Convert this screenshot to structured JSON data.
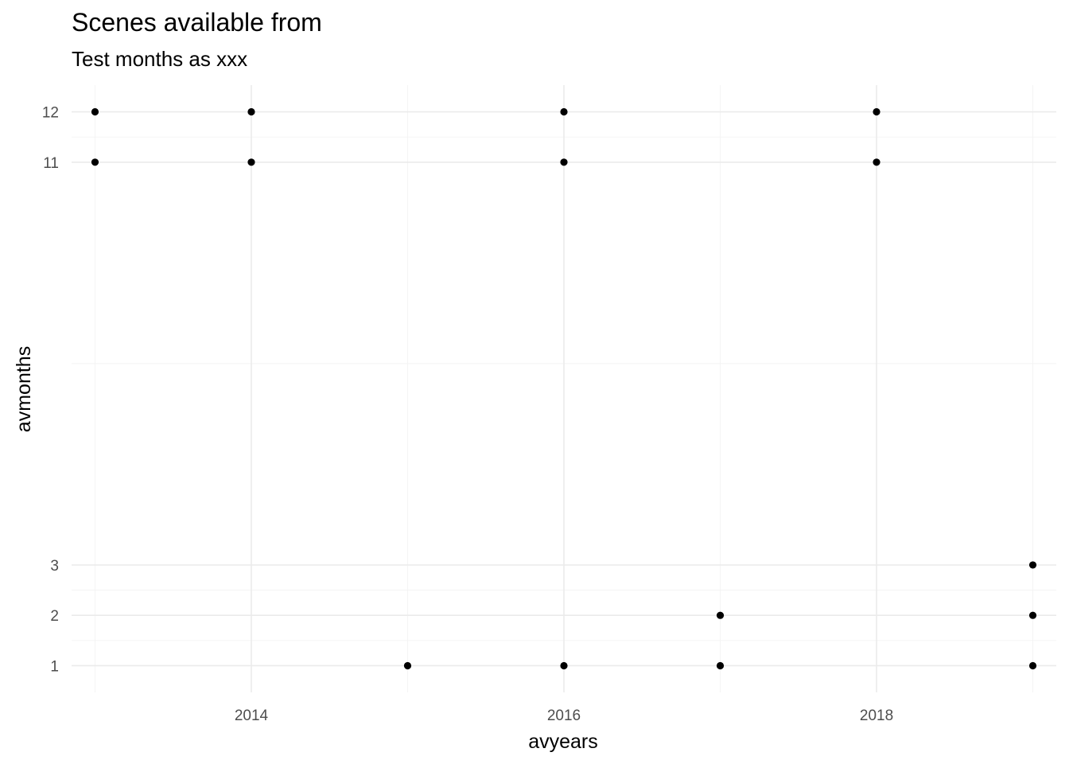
{
  "chart_data": {
    "type": "scatter",
    "title": "Scenes available from",
    "subtitle": "Test months as xxx",
    "xlabel": "avyears",
    "ylabel": "avmonths",
    "xlim": [
      2012.85,
      2019.15
    ],
    "ylim": [
      0.47,
      12.53
    ],
    "x_ticks": [
      2014,
      2016,
      2018
    ],
    "x_tick_labels": [
      "2014",
      "2016",
      "2018"
    ],
    "x_minor_ticks": [
      2013,
      2015,
      2017,
      2019
    ],
    "y_ticks": [
      1,
      2,
      3,
      11,
      12
    ],
    "y_tick_labels": [
      "1",
      "2",
      "3",
      "11",
      "12"
    ],
    "y_minor_ticks": [
      1.5,
      2.5,
      7,
      11.5
    ],
    "grid": true,
    "legend": "none",
    "point_color": "#000000",
    "points": [
      {
        "x": 2013,
        "y": 12
      },
      {
        "x": 2013,
        "y": 11
      },
      {
        "x": 2014,
        "y": 12
      },
      {
        "x": 2014,
        "y": 11
      },
      {
        "x": 2015,
        "y": 1
      },
      {
        "x": 2016,
        "y": 12
      },
      {
        "x": 2016,
        "y": 11
      },
      {
        "x": 2016,
        "y": 1
      },
      {
        "x": 2017,
        "y": 2
      },
      {
        "x": 2017,
        "y": 1
      },
      {
        "x": 2018,
        "y": 12
      },
      {
        "x": 2018,
        "y": 11
      },
      {
        "x": 2019,
        "y": 3
      },
      {
        "x": 2019,
        "y": 2
      },
      {
        "x": 2019,
        "y": 1
      }
    ]
  }
}
